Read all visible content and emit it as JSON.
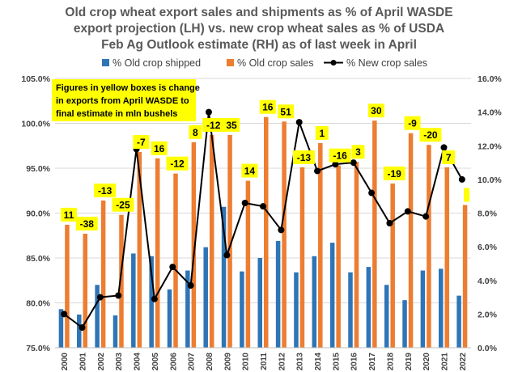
{
  "chart_data": {
    "type": "bar",
    "title_lines": [
      "Old crop wheat export sales and shipments as % of April WASDE",
      "export projection (LH) vs. new crop wheat sales as % of USDA",
      "Feb Ag Outlook estimate (RH) as of last week in April"
    ],
    "categories": [
      "2000",
      "2001",
      "2002",
      "2003",
      "2004",
      "2005",
      "2006",
      "2007",
      "2008",
      "2009",
      "2010",
      "2011",
      "2012",
      "2013",
      "2014",
      "2015",
      "2016",
      "2017",
      "2018",
      "2019",
      "2020",
      "2021",
      "2022"
    ],
    "series": [
      {
        "name": "% Old crop shipped",
        "axis": "left",
        "type": "bar",
        "color": "#2E75B6",
        "values": [
          79.3,
          78.7,
          82.0,
          78.6,
          85.5,
          85.2,
          81.5,
          83.6,
          86.2,
          90.7,
          83.5,
          85.0,
          86.9,
          83.4,
          85.2,
          86.7,
          83.4,
          84.0,
          82.0,
          80.3,
          83.6,
          83.8,
          80.8
        ]
      },
      {
        "name": "% Old crop sales",
        "axis": "left",
        "type": "bar",
        "color": "#ED7D31",
        "values": [
          88.7,
          87.7,
          91.4,
          89.8,
          96.8,
          96.1,
          94.4,
          97.9,
          98.7,
          98.7,
          93.6,
          100.7,
          100.2,
          95.1,
          97.8,
          95.3,
          95.7,
          100.3,
          93.3,
          98.9,
          97.6,
          95.1,
          90.9
        ]
      },
      {
        "name": "% New crop sales",
        "axis": "right",
        "type": "line",
        "color": "#000000",
        "values": [
          2.0,
          1.2,
          3.0,
          3.1,
          11.8,
          2.9,
          4.8,
          3.7,
          14.0,
          5.5,
          8.6,
          8.4,
          7.0,
          13.4,
          10.5,
          10.9,
          11.0,
          9.2,
          7.4,
          8.1,
          7.8,
          11.9,
          10.0
        ]
      }
    ],
    "yellow_labels": [
      "11",
      "-38",
      "-13",
      "-25",
      "-7",
      "16",
      "-12",
      "8",
      "-12",
      "35",
      "14",
      "16",
      "51",
      "-13",
      "1",
      "-16",
      "3",
      "30",
      "-19",
      "-9",
      "-20",
      "7",
      ""
    ],
    "left_axis": {
      "ylim": [
        75,
        105
      ],
      "ticks": [
        "75.0%",
        "80.0%",
        "85.0%",
        "90.0%",
        "95.0%",
        "100.0%",
        "105.0%"
      ]
    },
    "right_axis": {
      "ylim": [
        0,
        16
      ],
      "ticks": [
        "0.0%",
        "2.0%",
        "4.0%",
        "6.0%",
        "8.0%",
        "10.0%",
        "12.0%",
        "14.0%",
        "16.0%"
      ]
    },
    "grid": true,
    "legend_position": "top",
    "note_lines": [
      "Figures in yellow boxes is change",
      "in exports from April WASDE to",
      "final estimate in mln bushels"
    ],
    "colors": {
      "shipped": "#2E75B6",
      "sales": "#ED7D31",
      "new_crop": "#000000",
      "highlight": "#FFFF00"
    }
  }
}
